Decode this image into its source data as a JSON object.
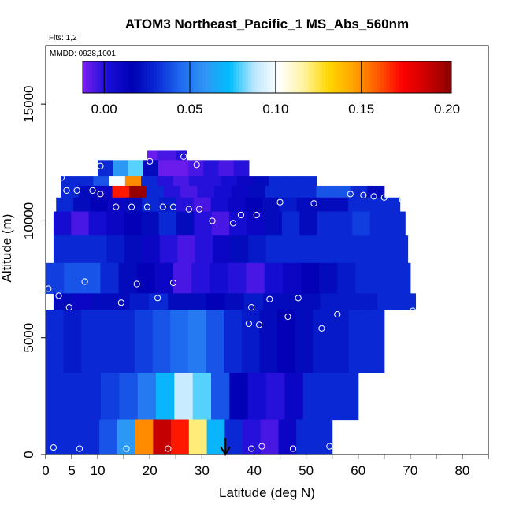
{
  "chart_data": {
    "type": "heatmap",
    "title": "ATOM3 Northeast_Pacific_1 MS_Abs_560nm",
    "flights_label": "Flts: 1,2",
    "dates_label": "MMDD: 0928,1001",
    "xlabel": "Latitude (deg N)",
    "ylabel": "Altitude (m)",
    "xlim": [
      0,
      85
    ],
    "ylim": [
      0,
      17500
    ],
    "x_ticks": [
      0,
      5,
      10,
      20,
      30,
      40,
      50,
      60,
      70,
      80
    ],
    "y_ticks": [
      0,
      5000,
      10000,
      15000
    ],
    "grid": false,
    "colorbar": {
      "range": [
        -0.0125,
        0.2025
      ],
      "ticks": [
        0.0,
        0.05,
        0.1,
        0.15,
        0.2
      ],
      "tick_labels": [
        "0.00",
        "0.05",
        "0.10",
        "0.15",
        "0.20"
      ],
      "colors": [
        "#7a1ff0",
        "#1a0fd8",
        "#0000b4",
        "#0a2ad6",
        "#1f6af0",
        "#2f96f5",
        "#00bfff",
        "#bfe8ff",
        "#ffffff",
        "#fff3a0",
        "#ffd700",
        "#ffa500",
        "#ff5a00",
        "#ff0000",
        "#cc0000",
        "#8b0000"
      ]
    },
    "arrow_marker": {
      "x": 34.5,
      "label": ""
    },
    "curtain_rows": [
      {
        "alt": [
          12600,
          13000
        ],
        "lat": [
          19.5,
          27
        ],
        "values": [
          -0.01,
          -0.005,
          -0.005,
          0.0
        ]
      },
      {
        "alt": [
          11900,
          12600
        ],
        "lat": [
          10,
          39
        ],
        "values": [
          0.03,
          0.06,
          0.08,
          0.02,
          -0.01,
          -0.01,
          -0.005,
          0.0,
          -0.005,
          0.0
        ]
      },
      {
        "alt": [
          11500,
          11900
        ],
        "lat": [
          3,
          52
        ],
        "values": [
          0.03,
          0.03,
          0.04,
          0.1,
          0.15,
          0.03,
          0.0,
          -0.005,
          0.0,
          0.0,
          0.005,
          0.01,
          0.02,
          0.03,
          0.03,
          0.03
        ]
      },
      {
        "alt": [
          11000,
          11500
        ],
        "lat": [
          3,
          65
        ],
        "values": [
          0.03,
          0.02,
          0.01,
          0.17,
          0.2,
          0.03,
          0.0,
          -0.005,
          0.0,
          0.005,
          0.01,
          0.02,
          0.03,
          0.03,
          0.03,
          0.04,
          0.04,
          0.03,
          0.02
        ]
      },
      {
        "alt": [
          10400,
          11000
        ],
        "lat": [
          2,
          68
        ],
        "values": [
          0.03,
          0.02,
          0.015,
          0.01,
          0.02,
          0.03,
          0.025,
          0.0,
          -0.005,
          0.005,
          0.01,
          0.015,
          0.02,
          0.025,
          0.02,
          0.02,
          0.02,
          0.03,
          0.03,
          0.03
        ]
      },
      {
        "alt": [
          9400,
          10400
        ],
        "lat": [
          1.5,
          69
        ],
        "values": [
          0.005,
          -0.005,
          0.005,
          0.01,
          0.015,
          0.02,
          0.03,
          0.02,
          0.0,
          -0.005,
          0.005,
          0.01,
          0.02,
          0.03,
          0.02,
          0.03,
          0.03,
          0.035,
          0.03,
          0.03
        ]
      },
      {
        "alt": [
          8200,
          9400
        ],
        "lat": [
          1.5,
          69.5
        ],
        "values": [
          0.03,
          0.03,
          0.03,
          0.025,
          0.02,
          0.01,
          0.0,
          -0.005,
          0.0,
          0.01,
          0.02,
          0.025,
          0.03,
          0.03,
          0.03,
          0.03,
          0.03,
          0.03,
          0.03,
          0.03
        ]
      },
      {
        "alt": [
          6900,
          8200
        ],
        "lat": [
          0,
          70
        ],
        "values": [
          0.035,
          0.04,
          0.04,
          0.03,
          0.02,
          0.015,
          0.01,
          -0.005,
          0.0,
          0.005,
          0.0,
          -0.005,
          0.005,
          0.01,
          0.015,
          0.02,
          0.025,
          0.03,
          0.03,
          0.03
        ]
      },
      {
        "alt": [
          6200,
          6900
        ],
        "lat": [
          1.5,
          71
        ],
        "values": [
          0.02,
          0.01,
          0.02,
          0.02,
          0.025,
          0.03,
          0.02,
          0.02,
          0.015,
          0.02,
          0.025,
          0.02,
          0.02,
          0.02,
          0.025,
          0.025,
          0.025,
          0.03,
          0.03
        ]
      },
      {
        "alt": [
          3500,
          6200
        ],
        "lat": [
          0,
          65
        ],
        "values": [
          0.03,
          0.025,
          0.03,
          0.03,
          0.03,
          0.035,
          0.04,
          0.045,
          0.05,
          0.04,
          0.03,
          0.025,
          0.02,
          0.015,
          0.02,
          0.025,
          0.025,
          0.03,
          0.03
        ]
      },
      {
        "alt": [
          1500,
          3500
        ],
        "lat": [
          0,
          60
        ],
        "values": [
          0.03,
          0.03,
          0.03,
          0.035,
          0.04,
          0.05,
          0.07,
          0.09,
          0.08,
          0.04,
          0.015,
          0.005,
          0.0,
          0.01,
          0.03,
          0.03,
          0.03
        ]
      },
      {
        "alt": [
          0,
          1500
        ],
        "lat": [
          0,
          55
        ],
        "values": [
          0.03,
          0.03,
          0.03,
          0.04,
          0.06,
          0.15,
          0.19,
          0.17,
          0.12,
          0.07,
          0.03,
          0.0,
          -0.005,
          0.01,
          0.03,
          0.03
        ]
      }
    ],
    "sample_points": [
      [
        0.5,
        7100
      ],
      [
        1.5,
        300
      ],
      [
        2.5,
        6800
      ],
      [
        3.0,
        11850
      ],
      [
        4.0,
        11300
      ],
      [
        4.5,
        6300
      ],
      [
        6.0,
        11300
      ],
      [
        6.5,
        250
      ],
      [
        7.5,
        7400
      ],
      [
        9.0,
        11300
      ],
      [
        10.5,
        12350
      ],
      [
        10.5,
        11150
      ],
      [
        13.5,
        10600
      ],
      [
        14.5,
        6500
      ],
      [
        15.5,
        250
      ],
      [
        16.5,
        10600
      ],
      [
        17.5,
        7300
      ],
      [
        19.5,
        10600
      ],
      [
        20.0,
        12550
      ],
      [
        21.5,
        6700
      ],
      [
        22.5,
        10600
      ],
      [
        23.5,
        250
      ],
      [
        24.5,
        10600
      ],
      [
        24.5,
        7350
      ],
      [
        26.5,
        12750
      ],
      [
        27.5,
        10500
      ],
      [
        29.5,
        10500
      ],
      [
        29.0,
        12400
      ],
      [
        32.0,
        10000
      ],
      [
        36.0,
        9900
      ],
      [
        37.5,
        10250
      ],
      [
        39.0,
        5600
      ],
      [
        39.5,
        6300
      ],
      [
        39.5,
        250
      ],
      [
        40.5,
        10250
      ],
      [
        41.0,
        5550
      ],
      [
        41.5,
        350
      ],
      [
        43.0,
        6650
      ],
      [
        45.0,
        10800
      ],
      [
        46.5,
        5900
      ],
      [
        47.5,
        250
      ],
      [
        48.5,
        6700
      ],
      [
        51.5,
        10750
      ],
      [
        53.0,
        5400
      ],
      [
        54.5,
        350
      ],
      [
        56.0,
        6000
      ],
      [
        58.5,
        11150
      ],
      [
        61.0,
        11100
      ],
      [
        63.0,
        11050
      ],
      [
        65.0,
        11000
      ],
      [
        68.5,
        10900
      ],
      [
        70.5,
        6150
      ]
    ]
  }
}
